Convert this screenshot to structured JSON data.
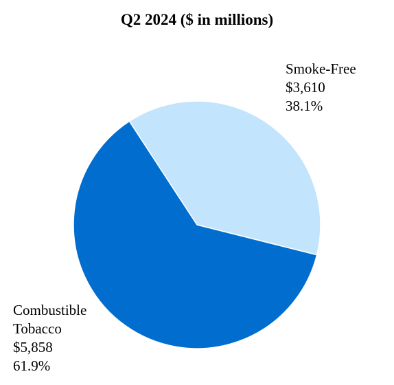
{
  "chart_data": {
    "type": "pie",
    "title": "Q2 2024 ($ in millions)",
    "slices": [
      {
        "name": "Smoke-Free",
        "value": 3610,
        "value_label": "$3,610",
        "percent": 38.1,
        "percent_label": "38.1%",
        "color": "#C2E4FC"
      },
      {
        "name": "Combustible Tobacco",
        "name_lines": [
          "Combustible",
          "Tobacco"
        ],
        "value": 5858,
        "value_label": "$5,858",
        "percent": 61.9,
        "percent_label": "61.9%",
        "color": "#006DCF"
      }
    ]
  }
}
